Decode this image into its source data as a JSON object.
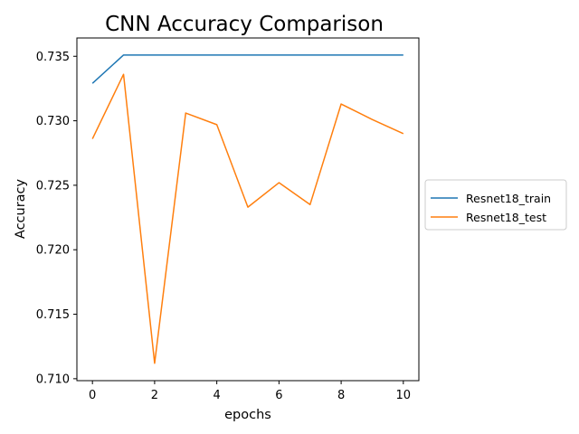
{
  "chart_data": {
    "type": "line",
    "title": "CNN Accuracy Comparison",
    "xlabel": "epochs",
    "ylabel": "Accuracy",
    "x": [
      0,
      1,
      2,
      3,
      4,
      5,
      6,
      7,
      8,
      9,
      10
    ],
    "xlim": [
      -0.5,
      10.5
    ],
    "ylim": [
      0.70985,
      0.73642
    ],
    "xticks": [
      0,
      2,
      4,
      6,
      8,
      10
    ],
    "xtick_labels": [
      "0",
      "2",
      "4",
      "6",
      "8",
      "10"
    ],
    "yticks": [
      0.71,
      0.715,
      0.72,
      0.725,
      0.73,
      0.735
    ],
    "ytick_labels": [
      "0.710",
      "0.715",
      "0.720",
      "0.725",
      "0.730",
      "0.735"
    ],
    "grid": false,
    "legend_position": "outside-right",
    "series": [
      {
        "name": "Resnet18_train",
        "color": "#1f77b4",
        "values": [
          0.7329,
          0.7351,
          0.7351,
          0.7351,
          0.7351,
          0.7351,
          0.7351,
          0.7351,
          0.7351,
          0.7351,
          0.7351
        ]
      },
      {
        "name": "Resnet18_test",
        "color": "#ff7f0e",
        "values": [
          0.7286,
          0.7336,
          0.7112,
          0.7306,
          0.7297,
          0.7233,
          0.7252,
          0.7235,
          0.7313,
          0.7301,
          0.729
        ]
      }
    ]
  }
}
